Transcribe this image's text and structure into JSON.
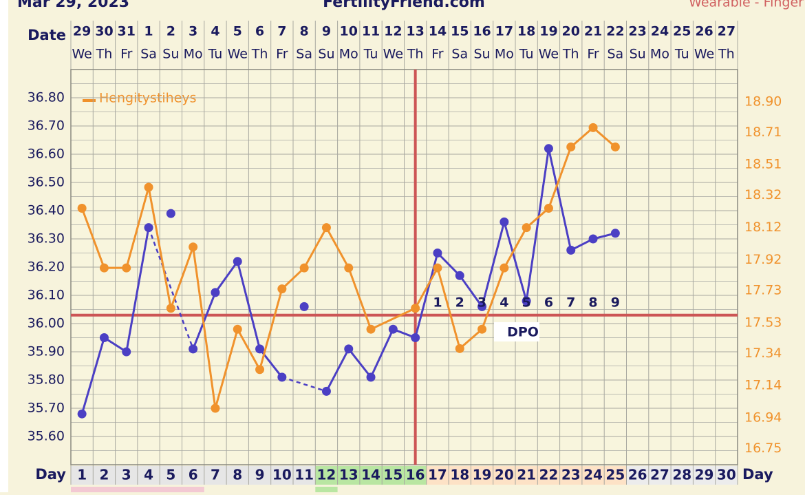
{
  "chart_data": {
    "type": "line",
    "header": {
      "date": "Mar 29, 2023",
      "site": "FertilityFriend.com",
      "source": "Wearable - Finger"
    },
    "date_label": "Date",
    "day_label": "Day",
    "dates": [
      "29",
      "30",
      "31",
      "1",
      "2",
      "3",
      "4",
      "5",
      "6",
      "7",
      "8",
      "9",
      "10",
      "11",
      "12",
      "13",
      "14",
      "15",
      "16",
      "17",
      "18",
      "19",
      "20",
      "21",
      "22",
      "23",
      "24",
      "25",
      "26",
      "27"
    ],
    "weekdays": [
      "We",
      "Th",
      "Fr",
      "Sa",
      "Su",
      "Mo",
      "Tu",
      "We",
      "Th",
      "Fr",
      "Sa",
      "Su",
      "Mo",
      "Tu",
      "We",
      "Th",
      "Fr",
      "Sa",
      "Su",
      "Mo",
      "Tu",
      "We",
      "Th",
      "Fr",
      "Sa",
      "Su",
      "Mo",
      "Tu",
      "We",
      "Th"
    ],
    "x": [
      1,
      2,
      3,
      4,
      5,
      6,
      7,
      8,
      9,
      10,
      11,
      12,
      13,
      14,
      15,
      16,
      17,
      18,
      19,
      20,
      21,
      22,
      23,
      24,
      25,
      26,
      27,
      28,
      29,
      30
    ],
    "xlim": [
      0.5,
      30.5
    ],
    "ylim": [
      35.5,
      36.9
    ],
    "yticks": [
      {
        "value": 35.6,
        "label": "35.60"
      },
      {
        "value": 35.7,
        "label": "35.70"
      },
      {
        "value": 35.8,
        "label": "35.80"
      },
      {
        "value": 35.9,
        "label": "35.90"
      },
      {
        "value": 36.0,
        "label": "36.00"
      },
      {
        "value": 36.1,
        "label": "36.10"
      },
      {
        "value": 36.2,
        "label": "36.20"
      },
      {
        "value": 36.3,
        "label": "36.30"
      },
      {
        "value": 36.4,
        "label": "36.40"
      },
      {
        "value": 36.5,
        "label": "36.50"
      },
      {
        "value": 36.6,
        "label": "36.60"
      },
      {
        "value": 36.7,
        "label": "36.70"
      },
      {
        "value": 36.8,
        "label": "36.80"
      }
    ],
    "y2lim": [
      16.65,
      19.1
    ],
    "y2ticks": [
      {
        "value": 16.75,
        "label": "16.75"
      },
      {
        "value": 16.94,
        "label": "16.94"
      },
      {
        "value": 17.14,
        "label": "17.14"
      },
      {
        "value": 17.34,
        "label": "17.34"
      },
      {
        "value": 17.53,
        "label": "17.53"
      },
      {
        "value": 17.73,
        "label": "17.73"
      },
      {
        "value": 17.92,
        "label": "17.92"
      },
      {
        "value": 18.12,
        "label": "18.12"
      },
      {
        "value": 18.32,
        "label": "18.32"
      },
      {
        "value": 18.51,
        "label": "18.51"
      },
      {
        "value": 18.71,
        "label": "18.71"
      },
      {
        "value": 18.9,
        "label": "18.90"
      }
    ],
    "grid": true,
    "coverline": 36.03,
    "ovulation_day": 16,
    "dpo_numbers": [
      1,
      2,
      3,
      4,
      5,
      6,
      7,
      8,
      9
    ],
    "dpo_label": "DPO",
    "series": [
      {
        "color": "#4b3fc4",
        "gap_style": "dashed",
        "values": [
          35.68,
          35.95,
          35.9,
          36.34,
          null,
          35.91,
          36.11,
          36.22,
          35.91,
          35.81,
          null,
          35.76,
          35.91,
          35.81,
          35.98,
          35.95,
          36.25,
          36.17,
          36.06,
          36.36,
          36.08,
          36.62,
          36.26,
          36.3,
          36.32,
          null,
          null,
          null,
          null,
          null
        ]
      },
      {
        "color": "#4b3fc4",
        "line": false,
        "values": [
          null,
          null,
          null,
          null,
          36.39,
          null,
          null,
          null,
          null,
          null,
          36.06,
          null,
          null,
          null,
          null,
          null,
          null,
          null,
          null,
          null,
          null,
          null,
          null,
          null,
          null,
          null,
          null,
          null,
          null,
          null
        ]
      },
      {
        "name": "Hengitystiheys",
        "color": "#f0922c",
        "axis": "y2",
        "x": [
          1,
          2,
          3,
          4,
          5,
          6,
          7,
          8,
          9,
          10,
          11,
          12,
          13,
          14,
          16,
          17,
          18,
          19,
          20,
          21,
          22,
          23,
          24,
          25
        ],
        "values": [
          18.24,
          17.87,
          17.87,
          18.37,
          17.62,
          18.0,
          17.0,
          17.49,
          17.24,
          17.74,
          17.87,
          18.12,
          17.87,
          17.49,
          17.62,
          17.87,
          17.37,
          17.49,
          17.87,
          18.12,
          18.24,
          18.62,
          18.74,
          18.62
        ]
      }
    ]
  }
}
